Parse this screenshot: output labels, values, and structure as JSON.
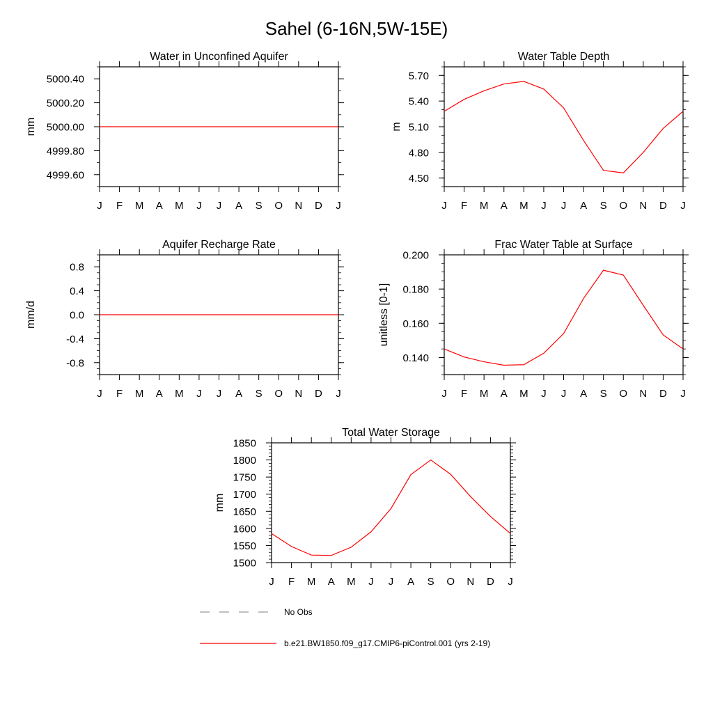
{
  "figure": {
    "title": "Sahel (6-16N,5W-15E)"
  },
  "chart_data": [
    {
      "id": "water-unconfined",
      "type": "line",
      "title": "Water in Unconfined Aquifer",
      "xlabel": "",
      "ylabel": "mm",
      "categories": [
        "J",
        "F",
        "M",
        "A",
        "M",
        "J",
        "J",
        "A",
        "S",
        "O",
        "N",
        "D",
        "J"
      ],
      "ylim": [
        4999.5,
        5000.5
      ],
      "yticks": [
        4999.6,
        4999.8,
        5000.0,
        5000.2,
        5000.4
      ],
      "ytick_labels": [
        "4999.60",
        "4999.80",
        "5000.00",
        "5000.20",
        "5000.40"
      ],
      "series": [
        {
          "name": "b.e21.BW1850.f09_g17.CMIP6-piControl.001 (yrs 2-19)",
          "color": "#ff0000",
          "values": [
            5000,
            5000,
            5000,
            5000,
            5000,
            5000,
            5000,
            5000,
            5000,
            5000,
            5000,
            5000,
            5000
          ]
        }
      ]
    },
    {
      "id": "water-table-depth",
      "type": "line",
      "title": "Water Table Depth",
      "xlabel": "",
      "ylabel": "m",
      "categories": [
        "J",
        "F",
        "M",
        "A",
        "M",
        "J",
        "J",
        "A",
        "S",
        "O",
        "N",
        "D",
        "J"
      ],
      "ylim": [
        4.4,
        5.8
      ],
      "yticks": [
        4.5,
        4.8,
        5.1,
        5.4,
        5.7
      ],
      "ytick_labels": [
        "4.50",
        "4.80",
        "5.10",
        "5.40",
        "5.70"
      ],
      "series": [
        {
          "name": "b.e21.BW1850.f09_g17.CMIP6-piControl.001 (yrs 2-19)",
          "color": "#ff0000",
          "values": [
            5.28,
            5.42,
            5.52,
            5.6,
            5.63,
            5.54,
            5.32,
            4.94,
            4.59,
            4.56,
            4.8,
            5.08,
            5.28
          ]
        }
      ]
    },
    {
      "id": "recharge-rate",
      "type": "line",
      "title": "Aquifer Recharge Rate",
      "xlabel": "",
      "ylabel": "mm/d",
      "categories": [
        "J",
        "F",
        "M",
        "A",
        "M",
        "J",
        "J",
        "A",
        "S",
        "O",
        "N",
        "D",
        "J"
      ],
      "ylim": [
        -1.0,
        1.0
      ],
      "yticks": [
        -0.8,
        -0.4,
        0.0,
        0.4,
        0.8
      ],
      "ytick_labels": [
        "-0.8",
        "-0.4",
        "0.0",
        "0.4",
        "0.8"
      ],
      "series": [
        {
          "name": "b.e21.BW1850.f09_g17.CMIP6-piControl.001 (yrs 2-19)",
          "color": "#ff0000",
          "values": [
            0,
            0,
            0,
            0,
            0,
            0,
            0,
            0,
            0,
            0,
            0,
            0,
            0
          ]
        }
      ]
    },
    {
      "id": "frac-water-table",
      "type": "line",
      "title": "Frac Water Table at Surface",
      "xlabel": "",
      "ylabel": "unitless [0-1]",
      "categories": [
        "J",
        "F",
        "M",
        "A",
        "M",
        "J",
        "J",
        "A",
        "S",
        "O",
        "N",
        "D",
        "J"
      ],
      "ylim": [
        0.13,
        0.2
      ],
      "yticks": [
        0.14,
        0.16,
        0.18,
        0.2
      ],
      "ytick_labels": [
        "0.140",
        "0.160",
        "0.180",
        "0.200"
      ],
      "series": [
        {
          "name": "b.e21.BW1850.f09_g17.CMIP6-piControl.001 (yrs 2-19)",
          "color": "#ff0000",
          "values": [
            0.145,
            0.1403,
            0.1375,
            0.1355,
            0.1358,
            0.1425,
            0.154,
            0.1745,
            0.191,
            0.1882,
            0.1705,
            0.1532,
            0.145
          ]
        }
      ]
    },
    {
      "id": "total-water-storage",
      "type": "line",
      "title": "Total Water Storage",
      "xlabel": "",
      "ylabel": "mm",
      "categories": [
        "J",
        "F",
        "M",
        "A",
        "M",
        "J",
        "J",
        "A",
        "S",
        "O",
        "N",
        "D",
        "J"
      ],
      "ylim": [
        1500,
        1850
      ],
      "yticks": [
        1500,
        1550,
        1600,
        1650,
        1700,
        1750,
        1800,
        1850
      ],
      "ytick_labels": [
        "1500",
        "1550",
        "1600",
        "1650",
        "1700",
        "1750",
        "1800",
        "1850"
      ],
      "series": [
        {
          "name": "b.e21.BW1850.f09_g17.CMIP6-piControl.001 (yrs 2-19)",
          "color": "#ff0000",
          "values": [
            1585,
            1547,
            1522,
            1521,
            1545,
            1590,
            1658,
            1757,
            1800,
            1758,
            1693,
            1635,
            1585
          ]
        }
      ]
    }
  ],
  "legend": {
    "items": [
      {
        "label": "No Obs",
        "style": "dashed",
        "color": "#999999"
      },
      {
        "label": "b.e21.BW1850.f09_g17.CMIP6-piControl.001 (yrs 2-19)",
        "style": "solid",
        "color": "#ff0000"
      }
    ]
  }
}
